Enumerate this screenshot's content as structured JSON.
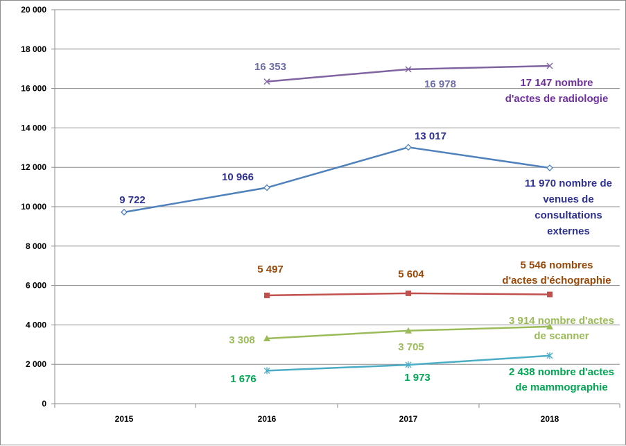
{
  "chart_data": {
    "type": "line",
    "title": "",
    "xlabel": "",
    "ylabel": "",
    "categories": [
      "2015",
      "2016",
      "2017",
      "2018"
    ],
    "ylim": [
      0,
      20000
    ],
    "y_ticks": [
      0,
      2000,
      4000,
      6000,
      8000,
      10000,
      12000,
      14000,
      16000,
      18000,
      20000
    ],
    "y_tick_labels": [
      "0",
      "2 000",
      "4 000",
      "6 000",
      "8 000",
      "10 000",
      "12 000",
      "14 000",
      "16 000",
      "18 000",
      "20 000"
    ],
    "grid": true,
    "legend": "none",
    "series": [
      {
        "key": "radiologie",
        "name": "nombre d'actes de radiologie",
        "color": "#8064a2",
        "label_color": "#7030a0",
        "value_label_color": "#6e6eab",
        "marker": "x",
        "values": [
          null,
          16353,
          16978,
          17147
        ],
        "value_labels": [
          null,
          "16 353",
          "16 978",
          "17 147"
        ],
        "end_label_lines": [
          "17 147 nombre",
          "d'actes de radiologie"
        ]
      },
      {
        "key": "consultations",
        "name": "nombre de venues de consultations externes",
        "color": "#4f81bd",
        "label_color": "#2e3192",
        "value_label_color": "#2e3192",
        "marker": "diamond",
        "values": [
          9722,
          10966,
          13017,
          11970
        ],
        "value_labels": [
          "9 722",
          "10 966",
          "13 017",
          "11 970"
        ],
        "end_label_lines": [
          "11 970 nombre de",
          "venues de",
          "consultations",
          "externes"
        ]
      },
      {
        "key": "echographie",
        "name": "nombres d'actes d'échographie",
        "color": "#c0504d",
        "label_color": "#984807",
        "value_label_color": "#984807",
        "marker": "square",
        "values": [
          null,
          5497,
          5604,
          5546
        ],
        "value_labels": [
          null,
          "5 497",
          "5 604",
          "5 546"
        ],
        "end_label_lines": [
          "5 546 nombres",
          "d'actes d'échographie"
        ]
      },
      {
        "key": "scanner",
        "name": "nombre d'actes de scanner",
        "color": "#9bbb59",
        "label_color": "#9bbb59",
        "value_label_color": "#9bbb59",
        "marker": "triangle",
        "values": [
          null,
          3308,
          3705,
          3914
        ],
        "value_labels": [
          null,
          "3 308",
          "3 705",
          "3 914"
        ],
        "end_label_lines": [
          "3 914 nombre d'actes",
          "de scanner"
        ]
      },
      {
        "key": "mammographie",
        "name": "nombre d'actes de mammographie",
        "color": "#4bacc6",
        "label_color": "#00a651",
        "value_label_color": "#00a651",
        "marker": "star",
        "values": [
          null,
          1676,
          1973,
          2438
        ],
        "value_labels": [
          null,
          "1 676",
          "1 973",
          "2 438"
        ],
        "end_label_lines": [
          "2 438 nombre d'actes",
          "de mammographie"
        ]
      }
    ]
  }
}
